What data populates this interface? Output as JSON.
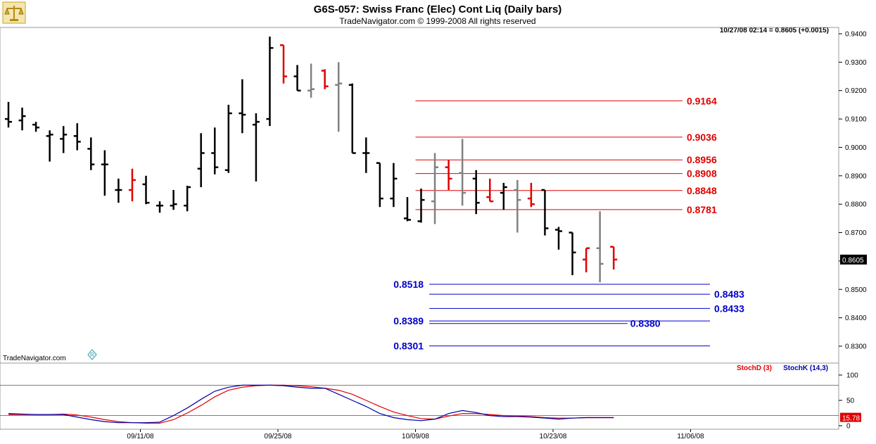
{
  "header": {
    "title": "G6S-057:  Swiss Franc (Elec) Cont Liq  (Daily bars)",
    "copyright": "TradeNavigator.com © 1999-2008 All rights reserved",
    "readout": "10/27/08 02:14 = 0.8605 (+0.0015)"
  },
  "brand": "TradeNavigator.com",
  "brand_logo": "R",
  "logo_icon": "scales-icon",
  "colors": {
    "up": "#000000",
    "down": "#e00000",
    "gray": "#808080",
    "level_red": "#e00000",
    "level_blue": "#0000cc",
    "stoch_d": "#e00000",
    "stoch_k": "#0000aa"
  },
  "chart_data": [
    {
      "type": "ohlc",
      "ylim": [
        0.826,
        0.942
      ],
      "yticks": [
        "0.9400",
        "0.9300",
        "0.9200",
        "0.9100",
        "0.9000",
        "0.8900",
        "0.8800",
        "0.8700",
        "0.8600",
        "0.8500",
        "0.8400",
        "0.8300"
      ],
      "last_value": "0.8605",
      "xtick_labels": [
        {
          "date": "09/11/08",
          "index": 10
        },
        {
          "date": "09/25/08",
          "index": 20
        },
        {
          "date": "10/09/08",
          "index": 30
        },
        {
          "date": "10/23/08",
          "index": 40
        },
        {
          "date": "11/06/08",
          "index": 50
        }
      ],
      "bars": [
        {
          "o": 0.91,
          "h": 0.916,
          "l": 0.907,
          "c": 0.909,
          "color": "black"
        },
        {
          "o": 0.9095,
          "h": 0.914,
          "l": 0.906,
          "c": 0.911,
          "color": "black"
        },
        {
          "o": 0.908,
          "h": 0.909,
          "l": 0.9055,
          "c": 0.907,
          "color": "black"
        },
        {
          "o": 0.904,
          "h": 0.906,
          "l": 0.895,
          "c": 0.9045,
          "color": "black"
        },
        {
          "o": 0.903,
          "h": 0.9075,
          "l": 0.898,
          "c": 0.9045,
          "color": "black"
        },
        {
          "o": 0.904,
          "h": 0.9085,
          "l": 0.899,
          "c": 0.902,
          "color": "black"
        },
        {
          "o": 0.8995,
          "h": 0.9035,
          "l": 0.892,
          "c": 0.894,
          "color": "black"
        },
        {
          "o": 0.894,
          "h": 0.899,
          "l": 0.883,
          "c": 0.894,
          "color": "black"
        },
        {
          "o": 0.885,
          "h": 0.889,
          "l": 0.8805,
          "c": 0.885,
          "color": "black"
        },
        {
          "o": 0.885,
          "h": 0.8925,
          "l": 0.881,
          "c": 0.8885,
          "color": "red"
        },
        {
          "o": 0.887,
          "h": 0.89,
          "l": 0.88,
          "c": 0.8805,
          "color": "black"
        },
        {
          "o": 0.8795,
          "h": 0.881,
          "l": 0.877,
          "c": 0.8795,
          "color": "black"
        },
        {
          "o": 0.8795,
          "h": 0.885,
          "l": 0.878,
          "c": 0.88,
          "color": "black"
        },
        {
          "o": 0.8795,
          "h": 0.8865,
          "l": 0.8775,
          "c": 0.886,
          "color": "black"
        },
        {
          "o": 0.8925,
          "h": 0.905,
          "l": 0.886,
          "c": 0.898,
          "color": "black"
        },
        {
          "o": 0.898,
          "h": 0.907,
          "l": 0.8905,
          "c": 0.893,
          "color": "black"
        },
        {
          "o": 0.892,
          "h": 0.915,
          "l": 0.891,
          "c": 0.912,
          "color": "black"
        },
        {
          "o": 0.912,
          "h": 0.924,
          "l": 0.905,
          "c": 0.9115,
          "color": "black"
        },
        {
          "o": 0.908,
          "h": 0.912,
          "l": 0.888,
          "c": 0.909,
          "color": "black"
        },
        {
          "o": 0.91,
          "h": 0.939,
          "l": 0.9075,
          "c": 0.935,
          "color": "black"
        },
        {
          "o": 0.936,
          "h": 0.936,
          "l": 0.9225,
          "c": 0.925,
          "color": "red"
        },
        {
          "o": 0.925,
          "h": 0.929,
          "l": 0.92,
          "c": 0.92,
          "color": "black"
        },
        {
          "o": 0.92,
          "h": 0.9295,
          "l": 0.9175,
          "c": 0.9205,
          "color": "gray"
        },
        {
          "o": 0.927,
          "h": 0.9275,
          "l": 0.9205,
          "c": 0.9215,
          "color": "red"
        },
        {
          "o": 0.922,
          "h": 0.93,
          "l": 0.9055,
          "c": 0.9225,
          "color": "gray"
        },
        {
          "o": 0.922,
          "h": 0.9225,
          "l": 0.898,
          "c": 0.898,
          "color": "black"
        },
        {
          "o": 0.898,
          "h": 0.9035,
          "l": 0.891,
          "c": 0.898,
          "color": "black"
        },
        {
          "o": 0.8945,
          "h": 0.8945,
          "l": 0.879,
          "c": 0.882,
          "color": "black"
        },
        {
          "o": 0.882,
          "h": 0.8945,
          "l": 0.879,
          "c": 0.889,
          "color": "black"
        },
        {
          "o": 0.875,
          "h": 0.8825,
          "l": 0.874,
          "c": 0.8745,
          "color": "black"
        },
        {
          "o": 0.874,
          "h": 0.8855,
          "l": 0.8735,
          "c": 0.8815,
          "color": "black"
        },
        {
          "o": 0.881,
          "h": 0.898,
          "l": 0.873,
          "c": 0.893,
          "color": "gray"
        },
        {
          "o": 0.893,
          "h": 0.8955,
          "l": 0.885,
          "c": 0.889,
          "color": "red"
        },
        {
          "o": 0.891,
          "h": 0.903,
          "l": 0.8795,
          "c": 0.884,
          "color": "gray"
        },
        {
          "o": 0.889,
          "h": 0.892,
          "l": 0.8765,
          "c": 0.8805,
          "color": "black"
        },
        {
          "o": 0.8825,
          "h": 0.889,
          "l": 0.881,
          "c": 0.881,
          "color": "red"
        },
        {
          "o": 0.884,
          "h": 0.8875,
          "l": 0.878,
          "c": 0.886,
          "color": "black"
        },
        {
          "o": 0.885,
          "h": 0.8885,
          "l": 0.87,
          "c": 0.8815,
          "color": "gray"
        },
        {
          "o": 0.882,
          "h": 0.8875,
          "l": 0.879,
          "c": 0.88,
          "color": "red"
        },
        {
          "o": 0.885,
          "h": 0.885,
          "l": 0.869,
          "c": 0.8715,
          "color": "black"
        },
        {
          "o": 0.871,
          "h": 0.872,
          "l": 0.864,
          "c": 0.8705,
          "color": "black"
        },
        {
          "o": 0.87,
          "h": 0.87,
          "l": 0.855,
          "c": 0.863,
          "color": "black"
        },
        {
          "o": 0.8605,
          "h": 0.8645,
          "l": 0.856,
          "c": 0.8645,
          "color": "red"
        },
        {
          "o": 0.8645,
          "h": 0.8775,
          "l": 0.8525,
          "c": 0.859,
          "color": "gray"
        },
        {
          "o": 0.865,
          "h": 0.865,
          "l": 0.857,
          "c": 0.8605,
          "color": "red"
        }
      ],
      "levels": [
        {
          "value": 0.9164,
          "label": "0.9164",
          "color": "red",
          "x0": 30,
          "x1": 49
        },
        {
          "value": 0.9036,
          "label": "0.9036",
          "color": "red",
          "x0": 30,
          "x1": 49
        },
        {
          "value": 0.8956,
          "label": "0.8956",
          "color": "red",
          "x0": 30,
          "x1": 49
        },
        {
          "value": 0.8908,
          "label": "0.8908",
          "color": "red",
          "x0": 30,
          "x1": 49
        },
        {
          "value": 0.8848,
          "label": "0.8848",
          "color": "red",
          "x0": 30,
          "x1": 49
        },
        {
          "value": 0.8781,
          "label": "0.8781",
          "color": "red",
          "x0": 30,
          "x1": 49
        },
        {
          "value": 0.8518,
          "label": "0.8518",
          "color": "blue",
          "x0": 31,
          "x1": 51,
          "label_side": "left"
        },
        {
          "value": 0.8483,
          "label": "0.8483",
          "color": "blue",
          "x0": 31,
          "x1": 51
        },
        {
          "value": 0.8433,
          "label": "0.8433",
          "color": "blue",
          "x0": 31,
          "x1": 51
        },
        {
          "value": 0.8389,
          "label": "0.8389",
          "color": "blue",
          "x0": 31,
          "x1": 51,
          "label_side": "left"
        },
        {
          "value": 0.838,
          "label": "0.8380",
          "color": "blue",
          "x0": 31,
          "x1": 45,
          "label_side": "inside"
        },
        {
          "value": 0.8301,
          "label": "0.8301",
          "color": "blue",
          "x0": 31,
          "x1": 51,
          "label_side": "left"
        }
      ]
    },
    {
      "type": "line",
      "ylim": [
        0,
        100
      ],
      "yticks": [
        "100",
        "50",
        "0"
      ],
      "reference_lines": [
        80,
        20
      ],
      "last_value": "15.78",
      "legend": [
        {
          "name": "StochD (3)",
          "color": "red"
        },
        {
          "name": "StochK (14,3)",
          "color": "blue"
        }
      ],
      "series": [
        {
          "name": "StochD (3)",
          "color": "red",
          "values": [
            22,
            22,
            22,
            22,
            23,
            21,
            17,
            12,
            8,
            6,
            5,
            5,
            12,
            25,
            40,
            57,
            70,
            76,
            79,
            80,
            80,
            79,
            77,
            74,
            70,
            62,
            50,
            38,
            27,
            20,
            14,
            13,
            19,
            24,
            24,
            22,
            20,
            19,
            18,
            16,
            15,
            15,
            16,
            16,
            16
          ]
        },
        {
          "name": "StochK (14,3)",
          "color": "blue",
          "values": [
            24,
            23,
            22,
            22,
            22,
            17,
            12,
            8,
            6,
            6,
            6,
            7,
            20,
            35,
            52,
            68,
            76,
            80,
            80,
            80,
            79,
            76,
            74,
            74,
            62,
            50,
            38,
            24,
            16,
            12,
            10,
            13,
            24,
            30,
            26,
            20,
            18,
            18,
            17,
            15,
            13,
            15,
            16,
            16,
            16
          ]
        }
      ]
    }
  ]
}
